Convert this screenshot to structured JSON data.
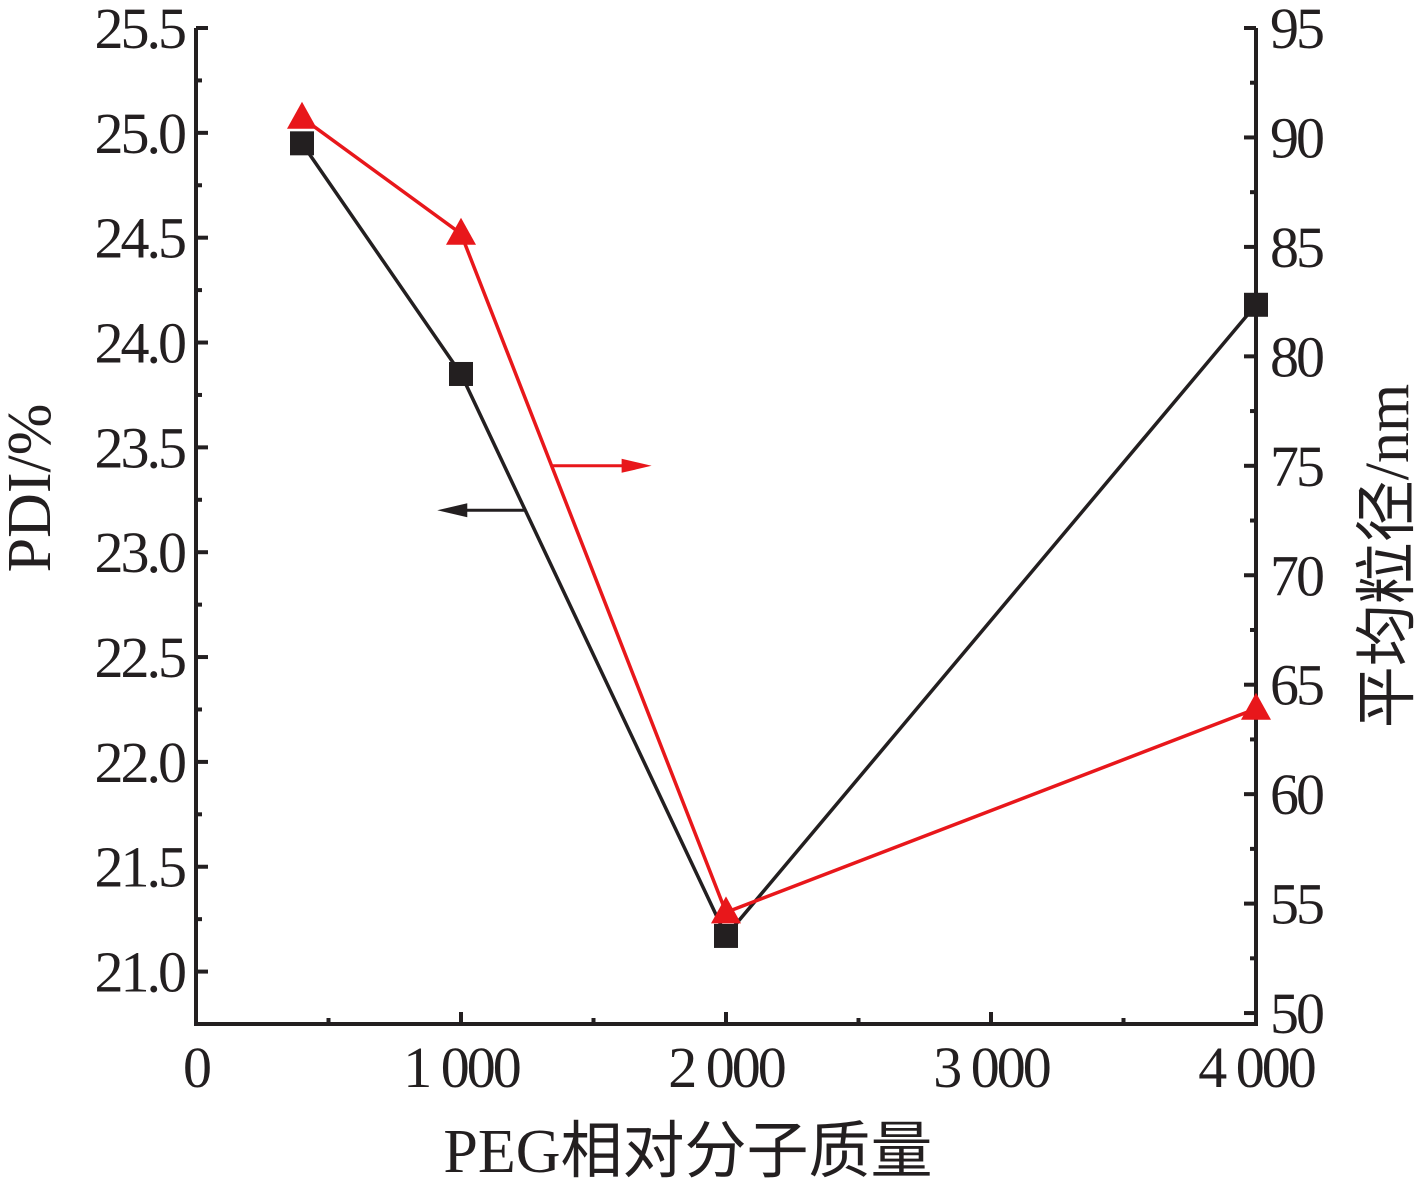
{
  "chart_data": {
    "type": "line",
    "x_axis": {
      "label": "PEG相对分子质量",
      "range": [
        0,
        4000
      ],
      "tick_values": [
        0,
        1000,
        2000,
        3000,
        4000
      ],
      "tick_labels": [
        "0",
        "1 000",
        "2 000",
        "3 000",
        "4 000"
      ]
    },
    "y_left": {
      "label": "PDI/%",
      "range": [
        20.75,
        25.5
      ],
      "ticks": [
        "21.0",
        "21.5",
        "22.0",
        "22.5",
        "23.0",
        "23.5",
        "24.0",
        "24.5",
        "25.0",
        "25.5"
      ]
    },
    "y_right": {
      "label": "平均粒径/nm",
      "range": [
        49.5,
        95
      ],
      "ticks": [
        "50",
        "55",
        "60",
        "65",
        "70",
        "75",
        "80",
        "85",
        "90",
        "95"
      ]
    },
    "series": [
      {
        "axis": "left",
        "marker": "square",
        "color": "#231f20",
        "x": [
          400,
          1000,
          2000,
          4000
        ],
        "y": [
          24.95,
          23.85,
          21.17,
          24.18
        ]
      },
      {
        "axis": "right",
        "marker": "triangle",
        "color": "#e8171b",
        "x": [
          400,
          1000,
          2000,
          4000
        ],
        "y": [
          90.9,
          85.6,
          54.6,
          63.9
        ]
      }
    ],
    "annotations": [
      {
        "type": "arrow",
        "direction": "left",
        "points_to": "left-axis",
        "color": "#231f20",
        "series_index": 0
      },
      {
        "type": "arrow",
        "direction": "right",
        "points_to": "right-axis",
        "color": "#e8171b",
        "series_index": 1
      }
    ],
    "grid": false,
    "legend": "none"
  }
}
